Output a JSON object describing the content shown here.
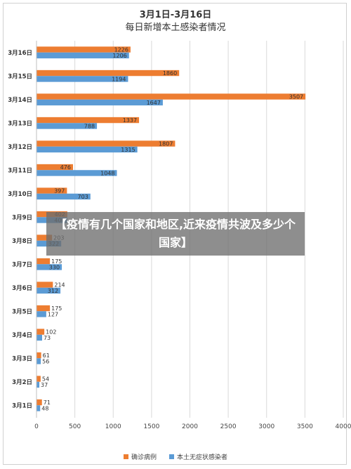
{
  "colors": {
    "confirmed": "#ED7D31",
    "asymptomatic": "#5B9BD5",
    "grid": "#D9D9D9",
    "text": "#444444"
  },
  "overlay": {
    "text": "【疫情有几个国家和地区,近来疫情共波及多少个国家】"
  },
  "chart_data": {
    "type": "bar",
    "orientation": "horizontal",
    "title": "3月1日-3月16日",
    "subtitle": "每日新增本土感染者情况",
    "categories": [
      "3月16日",
      "3月15日",
      "3月14日",
      "3月13日",
      "3月12日",
      "3月11日",
      "3月10日",
      "3月9日",
      "3月8日",
      "3月7日",
      "3月6日",
      "3月5日",
      "3月4日",
      "3月3日",
      "3月2日",
      "3月1日"
    ],
    "series": [
      {
        "name": "确诊病例",
        "values": [
          1226,
          1860,
          3507,
          1337,
          1807,
          476,
          397,
          402,
          203,
          175,
          214,
          175,
          102,
          61,
          54,
          71
        ]
      },
      {
        "name": "本土无症状感染者",
        "values": [
          1206,
          1194,
          1647,
          788,
          1315,
          1048,
          703,
          400,
          322,
          330,
          312,
          127,
          73,
          56,
          37,
          48
        ]
      }
    ],
    "ticks": [
      "0",
      "500",
      "1000",
      "1500",
      "2000",
      "2500",
      "3000",
      "3500",
      "4000"
    ],
    "xlim": [
      0,
      4000
    ],
    "grid": true,
    "legend_position": "bottom"
  }
}
